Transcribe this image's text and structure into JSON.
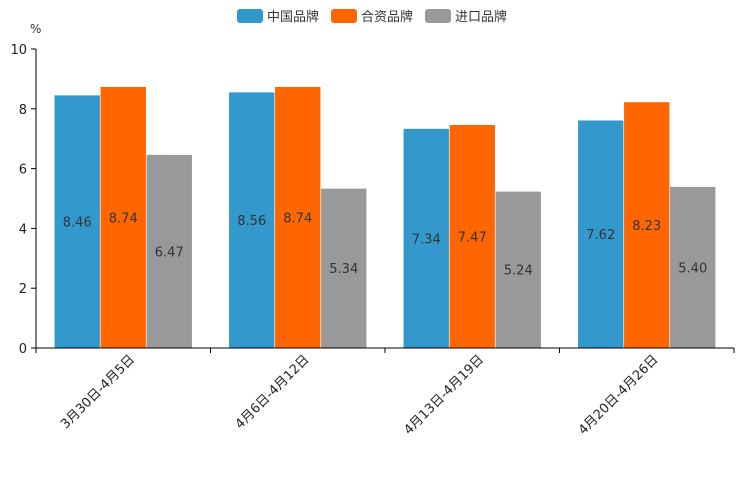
{
  "chart_data": {
    "type": "bar",
    "title": "",
    "ylabel": "%",
    "xlabel": "",
    "ylim": [
      0,
      10
    ],
    "yticks": [
      0,
      2,
      4,
      6,
      8,
      10
    ],
    "categories": [
      "3月30日-4月5日",
      "4月6日-4月12日",
      "4月13日-4月19日",
      "4月20日-4月26日"
    ],
    "series": [
      {
        "name": "中国品牌",
        "color": "#3399cc",
        "values": [
          8.46,
          8.56,
          7.34,
          7.62
        ]
      },
      {
        "name": "合资品牌",
        "color": "#ff6600",
        "values": [
          8.74,
          8.74,
          7.47,
          8.23
        ]
      },
      {
        "name": "进口品牌",
        "color": "#999999",
        "values": [
          6.47,
          5.34,
          5.24,
          5.4
        ]
      }
    ],
    "legend_position": "top-center",
    "value_labels": "inside-center"
  }
}
